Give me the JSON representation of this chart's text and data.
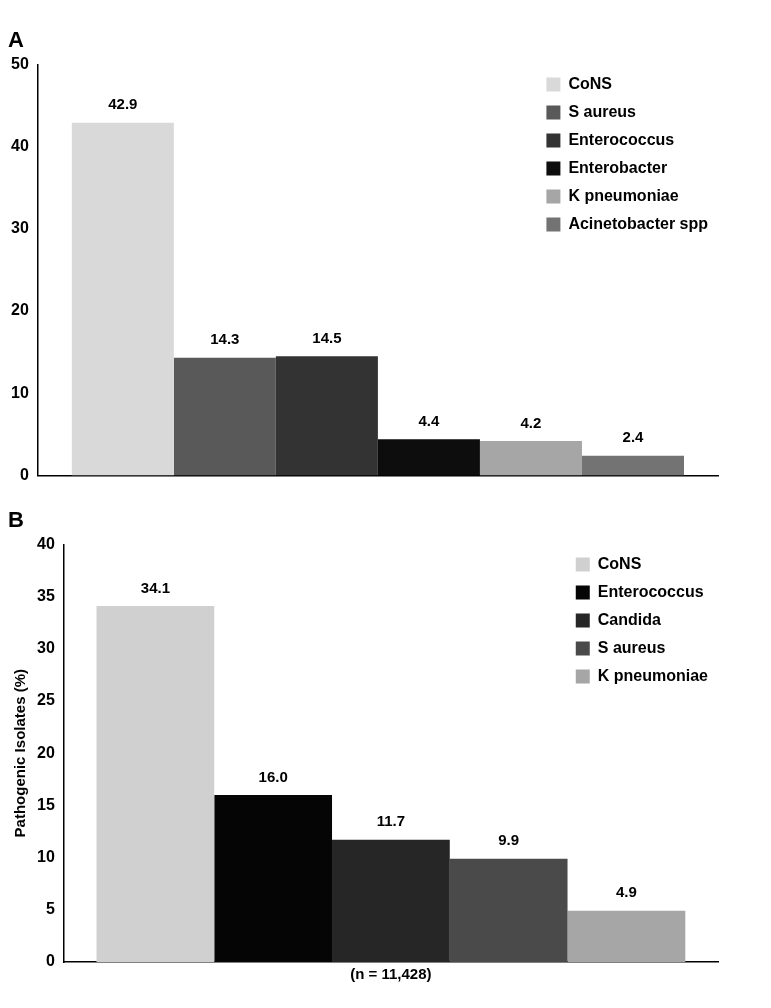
{
  "chart_data": [
    {
      "type": "bar",
      "title": "A",
      "categories": [
        null
      ],
      "series": [
        {
          "name": "CoNS",
          "color": "#d9d9d9",
          "values": [
            42.9
          ],
          "value_labels": [
            "42.9"
          ]
        },
        {
          "name": "S aureus",
          "color": "#595959",
          "values": [
            14.3
          ],
          "value_labels": [
            "14.3"
          ]
        },
        {
          "name": "Enterococcus",
          "color": "#333333",
          "values": [
            14.5
          ],
          "value_labels": [
            "14.5"
          ]
        },
        {
          "name": "Enterobacter",
          "color": "#0d0d0d",
          "values": [
            4.4
          ],
          "value_labels": [
            "4.4"
          ]
        },
        {
          "name": "K pneumoniae",
          "color": "#a6a6a6",
          "values": [
            4.2
          ],
          "value_labels": [
            "4.2"
          ]
        },
        {
          "name": "Acinetobacter spp",
          "color": "#737373",
          "values": [
            2.4
          ],
          "value_labels": [
            "2.4"
          ]
        }
      ],
      "ylim": [
        0,
        50
      ],
      "yticks": [
        0,
        10,
        20,
        30,
        40,
        50
      ],
      "legend": "top right",
      "grid": false
    },
    {
      "type": "bar",
      "title": "B",
      "xlabel": "(n = 11,428)",
      "ylabel": "Pathogenic Isolates (%)",
      "categories": [
        null
      ],
      "series": [
        {
          "name": "CoNS",
          "color": "#d0d0d0",
          "values": [
            34.1
          ],
          "value_labels": [
            "34.1"
          ]
        },
        {
          "name": "Enterococcus",
          "color": "#050505",
          "values": [
            16.0
          ],
          "value_labels": [
            "16.0"
          ]
        },
        {
          "name": "Candida",
          "color": "#262626",
          "values": [
            11.7
          ],
          "value_labels": [
            "11.7"
          ]
        },
        {
          "name": "S aureus",
          "color": "#4a4a4a",
          "values": [
            9.9
          ],
          "value_labels": [
            "9.9"
          ]
        },
        {
          "name": "K pneumoniae",
          "color": "#a6a6a6",
          "values": [
            4.9
          ],
          "value_labels": [
            "4.9"
          ]
        }
      ],
      "ylim": [
        0,
        40
      ],
      "yticks": [
        0,
        5,
        10,
        15,
        20,
        25,
        30,
        35,
        40
      ],
      "legend": "top right",
      "grid": false
    }
  ]
}
